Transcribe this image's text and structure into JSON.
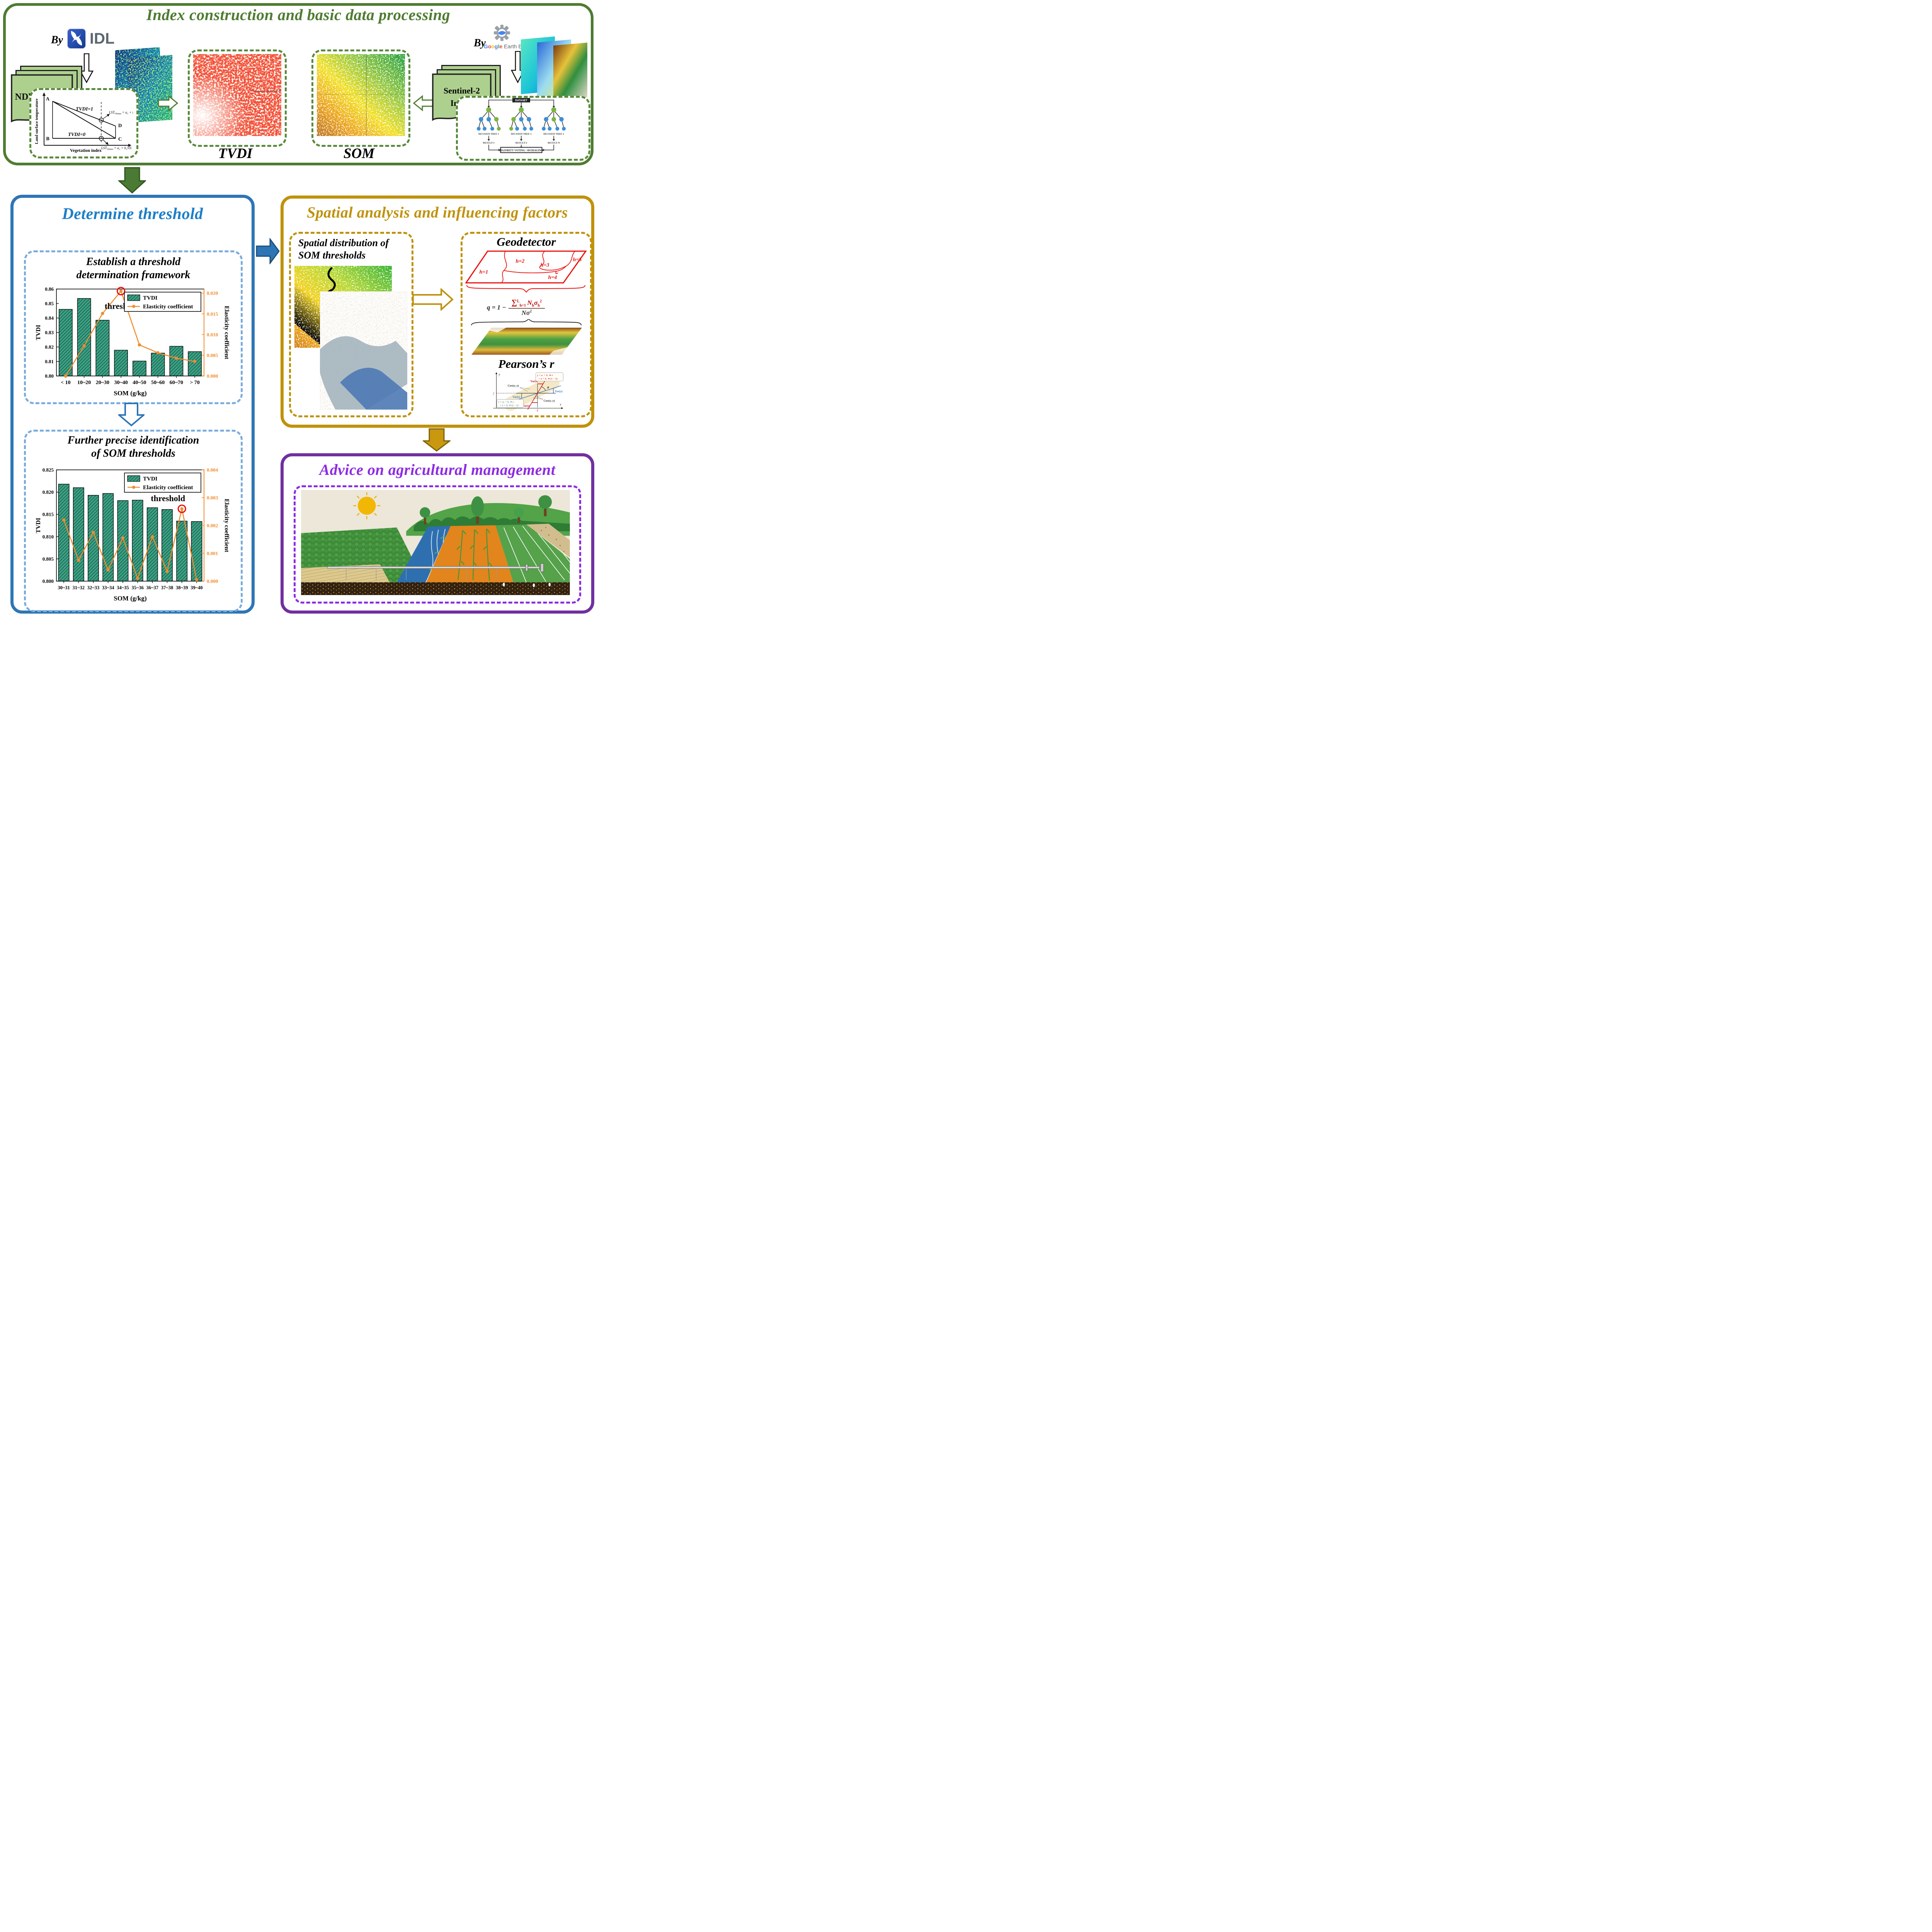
{
  "top": {
    "title": "Index construction and basic data processing",
    "by_left": "By",
    "idl": "IDL",
    "ndvi_card": "NDVI & LST",
    "triangle": {
      "ylabel": "Land surface temperature",
      "xlabel": "Vegetation index",
      "a": "A",
      "b": "B",
      "c": "C",
      "d": "D",
      "tvdi1": "TVDI=1",
      "tvdi0": "TVDI=0",
      "lst_max_base": "LST",
      "lst_max_sub": "VIimax",
      "lst_max_rest": " = a₁ + b₁VIi",
      "lst_min_base": "LST",
      "lst_min_sub": "VIimin",
      "lst_min_rest": " = a₂ + b₂VIi"
    },
    "tvdi_map_label": "TVDI",
    "som_map_label": "SOM",
    "sentinel_line1": "Sentinel-2",
    "sentinel_line2": "Image",
    "by_right": "By",
    "google": {
      "g1": "G",
      "o1": "o",
      "o2": "o",
      "g2": "g",
      "l": "l",
      "e": "e",
      "rest": " Earth Engine"
    },
    "forest": {
      "dataset": "DATASET",
      "tree1": "DECISION TREE-1",
      "tree2": "DECISION TREE-1",
      "tree3": "DECISION TREE-1",
      "r1": "RESULT-1",
      "r2": "RESULT-2",
      "r3": "RESULT-N",
      "voting": "MAJORITY VOTING / AVERAGING"
    }
  },
  "determine": {
    "title": "Determine threshold",
    "box1_l1": "Establish a threshold",
    "box1_l2": "determination framework",
    "box2_l1": "Further precise identification",
    "box2_l2": "of SOM thresholds"
  },
  "spatial": {
    "title": "Spatial analysis and influencing factors",
    "dist_l1": "Spatial distribution of",
    "dist_l2": "SOM thresholds",
    "geo_title": "Geodetector",
    "h1": "h=1",
    "h2": "h=2",
    "h3": "h=3",
    "h4": "h=4",
    "h5": "h=5",
    "q_lhs": "q = 1 −",
    "sum": "∑",
    "sum_sup": "L",
    "sum_sub": "h=1",
    "num_a": "N",
    "num_a_sub": "h",
    "num_b": "σ",
    "num_b_sub": "h",
    "num_b_sup": "2",
    "den": "Nσ",
    "den_sup": "2",
    "pearson_title": "Pearson’s r",
    "p": {
      "x": "x",
      "y": "y",
      "xbar": "x̄",
      "ybar": "ȳ",
      "phi": "φ",
      "varx_top": "Var(x)",
      "varx_bot": "Var(x)",
      "vary_left": "Var(y)",
      "vary_right": "Var(y)",
      "cov_top": "Cov(x; y)",
      "cov_bot": "Cov(x; y)",
      "red1": "y = aₓ + bₓ ∗ x",
      "red2": "= ȳ + bₓ ∗ (x − x̄)",
      "blue1": "x = aᵧ + bᵧ ∗ y",
      "blue2": "= x̄ + bᵧ ∗ (y − ȳ)"
    }
  },
  "advice": {
    "title": "Advice on agricultural management"
  },
  "colors": {
    "section_green": "#4e7c31",
    "section_blue": "#2e75b6",
    "blue_title": "#1c7fc7",
    "section_gold": "#c0920c",
    "section_purple": "#7030a0",
    "purple_title": "#8d2be2",
    "bar_fill": "#38a284",
    "line_orange": "#f08c2e",
    "threshold_red": "#e8100c"
  },
  "chart_data": [
    {
      "type": "bar",
      "categories": [
        "< 10",
        "10~20",
        "20~30",
        "30~40",
        "40~50",
        "50~60",
        "60~70",
        "> 70"
      ],
      "series": [
        {
          "name": "TVDI",
          "kind": "bar",
          "values": [
            0.846,
            0.8535,
            0.8385,
            0.8178,
            0.8103,
            0.8158,
            0.8205,
            0.8168
          ]
        },
        {
          "name": "Elasticity coefficient",
          "kind": "line",
          "values": [
            0.0,
            0.0073,
            0.0151,
            0.0205,
            0.0075,
            0.0056,
            0.0043,
            0.0035
          ]
        }
      ],
      "xlabel": "SOM (g/kg)",
      "ylabel_left": "TVDI",
      "ylabel_right": "Elasticity coefficient",
      "ylim_left": [
        0.8,
        0.86
      ],
      "yticks_left": [
        "0.80",
        "0.81",
        "0.82",
        "0.83",
        "0.84",
        "0.85",
        "0.86"
      ],
      "ylim_right": [
        0.0,
        0.021
      ],
      "yticks_right": [
        "0.000",
        "0.005",
        "0.010",
        "0.015",
        "0.020"
      ],
      "legend_position": "top-right",
      "grid": false,
      "annotation": {
        "label": "threshold",
        "series": "Elasticity coefficient",
        "index": 3
      }
    },
    {
      "type": "bar",
      "categories": [
        "30~31",
        "31~32",
        "32~33",
        "33~34",
        "34~35",
        "35~36",
        "36~37",
        "37~38",
        "38~39",
        "39~40"
      ],
      "series": [
        {
          "name": "TVDI",
          "kind": "bar",
          "values": [
            0.8218,
            0.821,
            0.8193,
            0.8197,
            0.8181,
            0.8182,
            0.8165,
            0.8161,
            0.8135,
            0.8134
          ]
        },
        {
          "name": "Elasticity coefficient",
          "kind": "line",
          "values": [
            0.0022,
            0.00075,
            0.00175,
            0.0004,
            0.00155,
            0.0001,
            0.0016,
            0.00035,
            0.0026,
            5e-05
          ]
        }
      ],
      "xlabel": "SOM (g/kg)",
      "ylabel_left": "TVDI",
      "ylabel_right": "Elasticity coefficient",
      "ylim_left": [
        0.8,
        0.825
      ],
      "yticks_left": [
        "0.800",
        "0.805",
        "0.810",
        "0.815",
        "0.820",
        "0.825"
      ],
      "ylim_right": [
        0.0,
        0.004
      ],
      "yticks_right": [
        "0.000",
        "0.001",
        "0.002",
        "0.003",
        "0.004"
      ],
      "legend_position": "top-right",
      "grid": false,
      "annotation": {
        "label": "threshold",
        "series": "Elasticity coefficient",
        "index": 8
      }
    }
  ]
}
